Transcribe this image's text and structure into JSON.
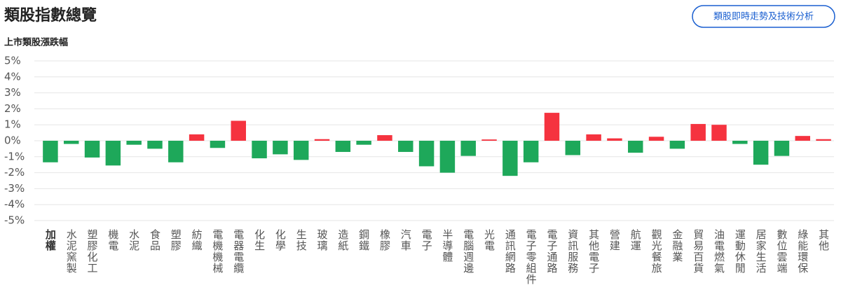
{
  "chart_data": {
    "type": "bar",
    "title": "類股指數總覽",
    "button": "類股即時走勢及技術分析",
    "subtitle": "上市類股漲跌幅",
    "categories": [
      "加權",
      "水泥窯製",
      "塑膠化工",
      "機電",
      "水泥",
      "食品",
      "塑膠",
      "紡織",
      "電機機械",
      "電器電纜",
      "化生",
      "化學",
      "生技",
      "玻璃",
      "造紙",
      "鋼鐵",
      "橡膠",
      "汽車",
      "電子",
      "半導體",
      "電腦週邊",
      "光電",
      "通訊網路",
      "電子零組件",
      "電子通路",
      "資訊服務",
      "其他電子",
      "營建",
      "航運",
      "觀光餐旅",
      "金融業",
      "貿易百貨",
      "油電燃氣",
      "運動休閒",
      "居家生活",
      "數位雲端",
      "綠能環保",
      "其他"
    ],
    "values": [
      -1.35,
      -0.2,
      -1.05,
      -1.55,
      -0.25,
      -0.5,
      -1.35,
      0.4,
      -0.45,
      1.25,
      -1.1,
      -0.85,
      -1.2,
      0.1,
      -0.7,
      -0.25,
      0.35,
      -0.7,
      -1.6,
      -2.0,
      -0.95,
      0.08,
      -2.2,
      -1.35,
      1.75,
      -0.9,
      0.4,
      0.15,
      -0.75,
      0.25,
      -0.5,
      1.05,
      1.0,
      -0.2,
      -1.5,
      -0.95,
      0.3,
      0.1
    ],
    "positive_color": "#f5333f",
    "negative_color": "#1ea85a",
    "ylim": [
      -5,
      5
    ],
    "yticks": [
      {
        "value": 5,
        "label": "5%"
      },
      {
        "value": 4,
        "label": "4%"
      },
      {
        "value": 3,
        "label": "3%"
      },
      {
        "value": 2,
        "label": "2%"
      },
      {
        "value": 1,
        "label": "1%"
      },
      {
        "value": 0,
        "label": "0%"
      },
      {
        "value": -1,
        "label": "-1%"
      },
      {
        "value": -2,
        "label": "-2%"
      },
      {
        "value": -3,
        "label": "-3%"
      },
      {
        "value": -4,
        "label": "-4%"
      },
      {
        "value": -5,
        "label": "-5%"
      }
    ],
    "grid": true
  }
}
